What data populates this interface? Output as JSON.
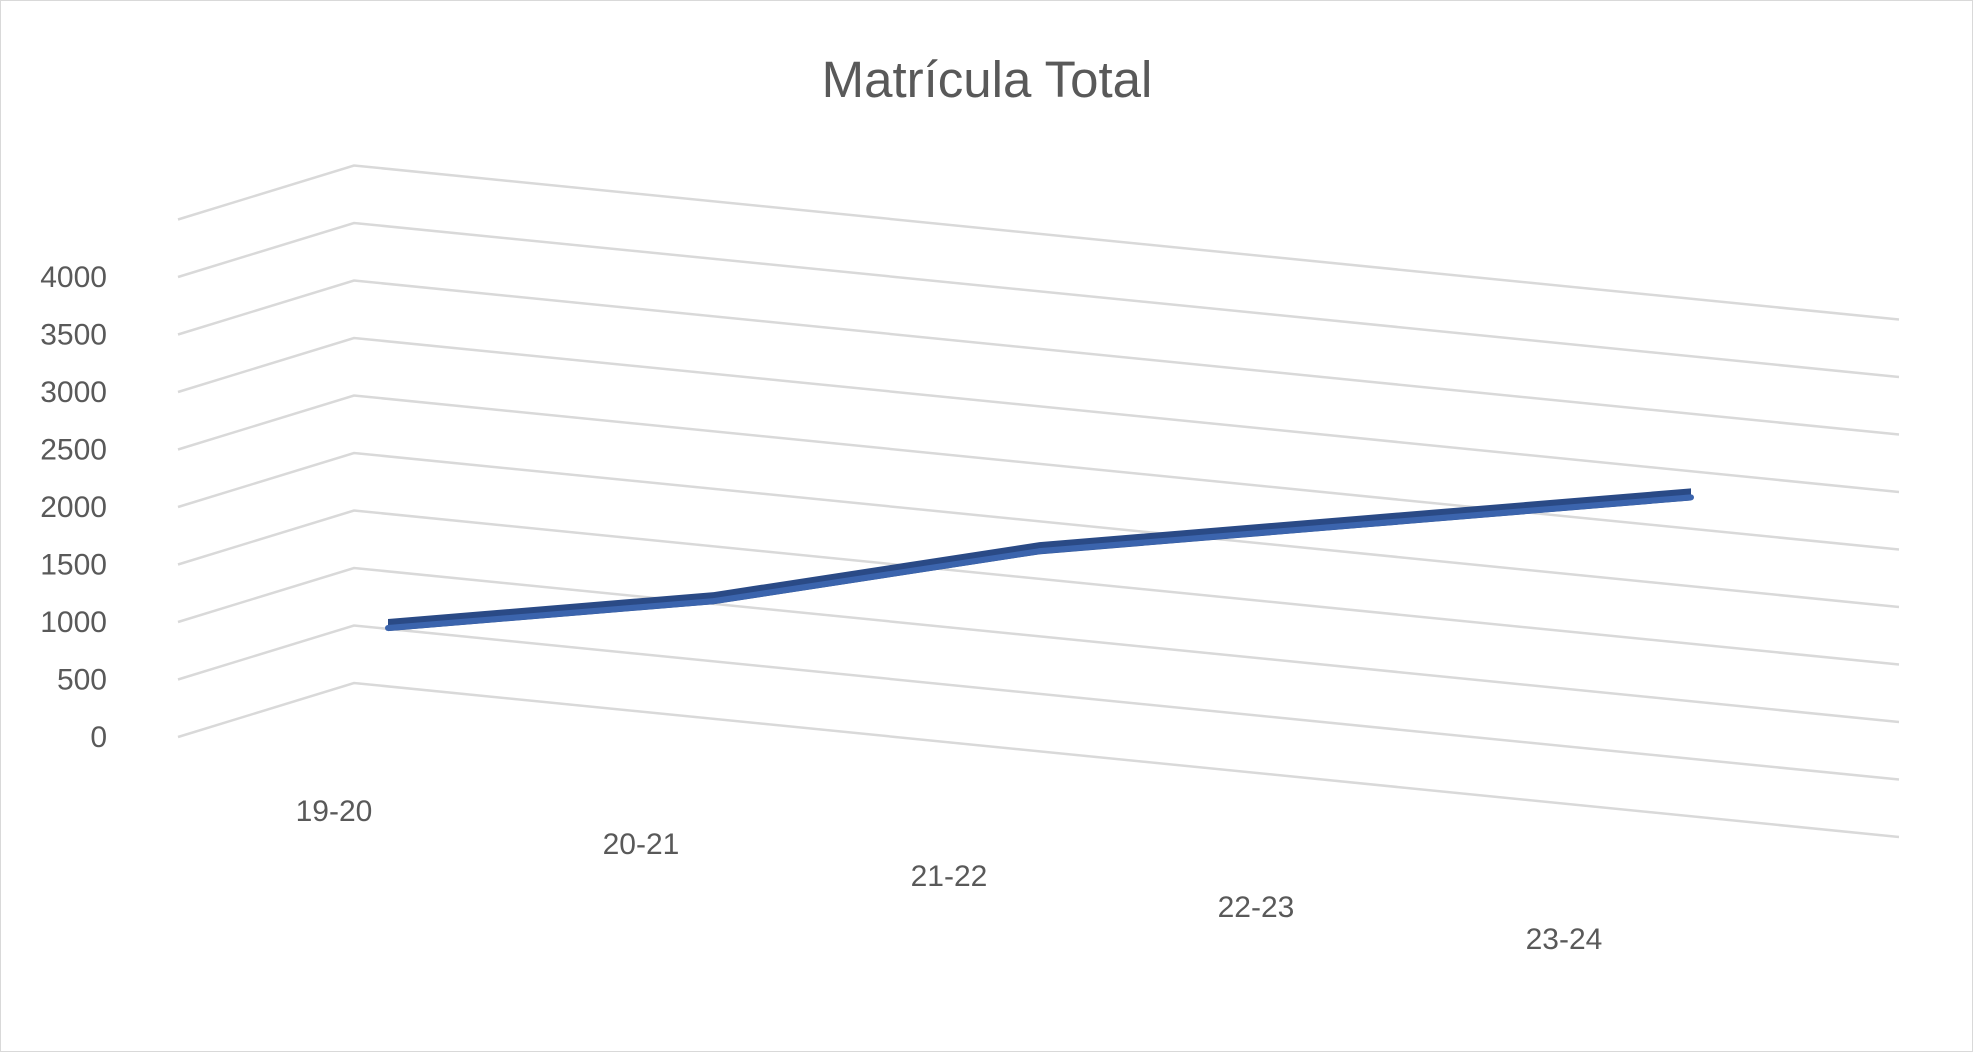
{
  "chart_data": {
    "type": "line",
    "title": "Matrícula Total",
    "categories": [
      "19-20",
      "20-21",
      "21-22",
      "22-23",
      "23-24"
    ],
    "series": [
      {
        "values": [
          950,
          1450,
          2150,
          2650,
          3150
        ]
      }
    ],
    "ylim": [
      0,
      4000
    ],
    "y_ticks": [
      "0",
      "500",
      "1000",
      "1500",
      "2000",
      "2500",
      "3000",
      "3500",
      "4000"
    ],
    "grid": true,
    "legend": "none",
    "style": "3d",
    "colors": {
      "series": "#3b64ad",
      "series_dark": "#2a4a86",
      "grid": "#d9d9d9",
      "text": "#595959"
    }
  }
}
